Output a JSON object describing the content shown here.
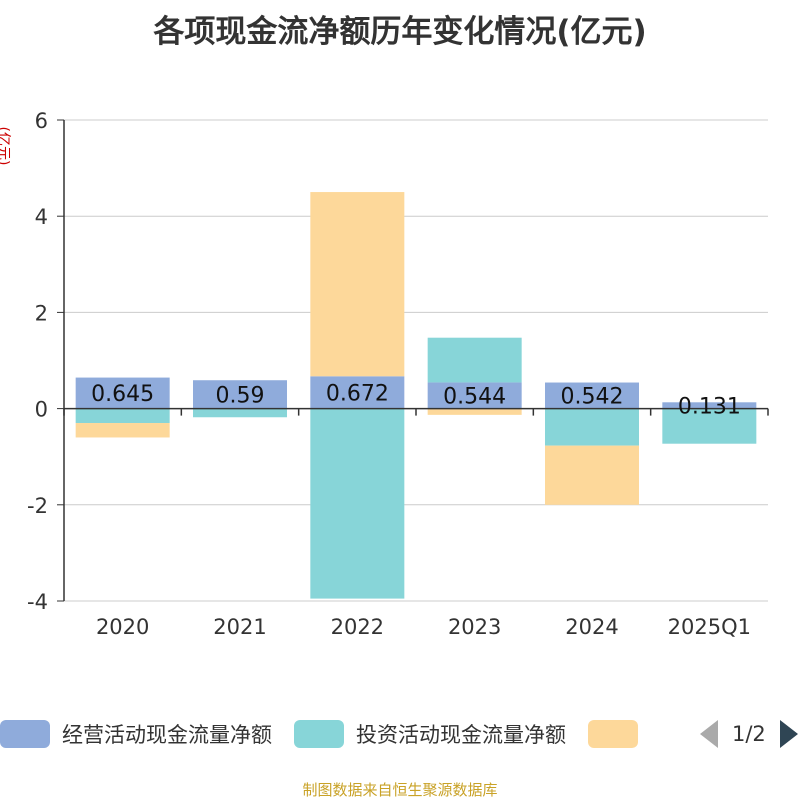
{
  "chart_data": {
    "type": "bar",
    "stacked": true,
    "title": "各项现金流净额历年变化情况(亿元)",
    "ylabel": "(亿元)",
    "categories": [
      "2020",
      "2021",
      "2022",
      "2023",
      "2024",
      "2025Q1"
    ],
    "ylim": [
      -4,
      6
    ],
    "yticks": [
      6,
      4,
      2,
      0,
      -2,
      -4
    ],
    "grid": true,
    "legend_position": "bottom",
    "series": [
      {
        "name": "经营活动现金流量净额",
        "color": "#8fabdb",
        "values": [
          0.645,
          0.59,
          0.672,
          0.544,
          0.542,
          0.131
        ],
        "labels": [
          "0.645",
          "0.59",
          "0.672",
          "0.544",
          "0.542",
          "0.131"
        ]
      },
      {
        "name": "投资活动现金流量净额",
        "color": "#87d5d8",
        "values": [
          -0.3,
          -0.18,
          -3.95,
          0.93,
          -0.77,
          -0.73
        ]
      },
      {
        "name": "",
        "color": "#fdd89a",
        "values": [
          -0.3,
          0.0,
          3.83,
          -0.13,
          -1.23,
          0.0
        ]
      }
    ]
  },
  "legend": {
    "items": [
      {
        "label": "经营活动现金流量净额",
        "color": "#8fabdb"
      },
      {
        "label": "投资活动现金流量净额",
        "color": "#87d5d8"
      },
      {
        "label": "",
        "color": "#fdd89a"
      }
    ],
    "page_text": "1/2"
  },
  "source": "制图数据来自恒生聚源数据库"
}
